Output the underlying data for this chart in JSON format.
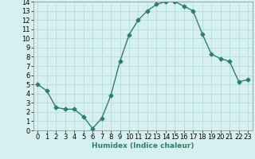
{
  "x": [
    0,
    1,
    2,
    3,
    4,
    5,
    6,
    7,
    8,
    9,
    10,
    11,
    12,
    13,
    14,
    15,
    16,
    17,
    18,
    19,
    20,
    21,
    22,
    23
  ],
  "y": [
    5.0,
    4.3,
    2.5,
    2.3,
    2.3,
    1.5,
    0.2,
    1.3,
    3.8,
    7.5,
    10.4,
    12.0,
    13.0,
    13.7,
    14.0,
    14.0,
    13.5,
    13.0,
    10.5,
    8.3,
    7.8,
    7.5,
    5.3,
    5.5
  ],
  "line_color": "#2e7d6e",
  "marker": "D",
  "marker_size": 2.5,
  "bg_color": "#d6f0f0",
  "grid_color": "#b0d8d8",
  "xlabel": "Humidex (Indice chaleur)",
  "xlim": [
    -0.5,
    23.5
  ],
  "ylim": [
    0,
    14
  ],
  "yticks": [
    0,
    1,
    2,
    3,
    4,
    5,
    6,
    7,
    8,
    9,
    10,
    11,
    12,
    13,
    14
  ],
  "xticks": [
    0,
    1,
    2,
    3,
    4,
    5,
    6,
    7,
    8,
    9,
    10,
    11,
    12,
    13,
    14,
    15,
    16,
    17,
    18,
    19,
    20,
    21,
    22,
    23
  ],
  "label_fontsize": 6.5,
  "tick_fontsize": 6
}
